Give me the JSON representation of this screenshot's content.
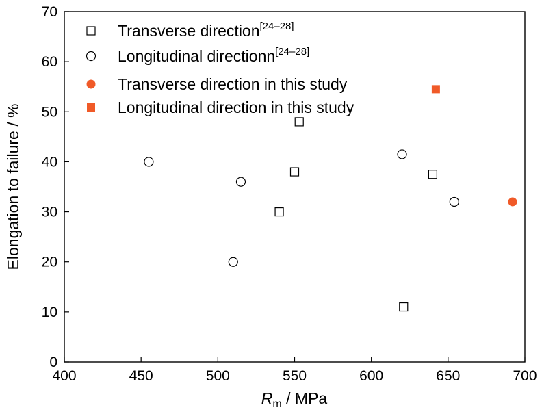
{
  "chart_data": {
    "type": "scatter",
    "xlabel": {
      "var": "R",
      "sub": "m",
      "unit": " / MPa"
    },
    "ylabel": "Elongation to failure / %",
    "xlim": [
      400,
      700
    ],
    "ylim": [
      0,
      70
    ],
    "xticks": [
      "400",
      "450",
      "500",
      "550",
      "600",
      "650",
      "700"
    ],
    "yticks": [
      "0",
      "10",
      "20",
      "30",
      "40",
      "50",
      "60",
      "70"
    ],
    "grid": false,
    "legend_position": "top-left",
    "colors": {
      "accent": "#f05a28",
      "open": "#000000"
    },
    "series": [
      {
        "name": "Transverse direction",
        "ref": "[24–28]",
        "marker": "open-square",
        "points": [
          {
            "x": 540,
            "y": 30
          },
          {
            "x": 550,
            "y": 38
          },
          {
            "x": 553,
            "y": 48
          },
          {
            "x": 621,
            "y": 11
          },
          {
            "x": 640,
            "y": 37.5
          }
        ]
      },
      {
        "name": "Longitudinal directionn",
        "ref": "[24–28]",
        "marker": "open-circle",
        "points": [
          {
            "x": 455,
            "y": 40
          },
          {
            "x": 510,
            "y": 20
          },
          {
            "x": 515,
            "y": 36
          },
          {
            "x": 620,
            "y": 41.5
          },
          {
            "x": 654,
            "y": 32
          }
        ]
      },
      {
        "name": "Transverse direction in this study",
        "ref": "",
        "marker": "filled-circle",
        "points": [
          {
            "x": 692,
            "y": 32
          }
        ]
      },
      {
        "name": "Longitudinal direction in this study",
        "ref": "",
        "marker": "filled-square",
        "points": [
          {
            "x": 642,
            "y": 54.5
          }
        ]
      }
    ]
  }
}
